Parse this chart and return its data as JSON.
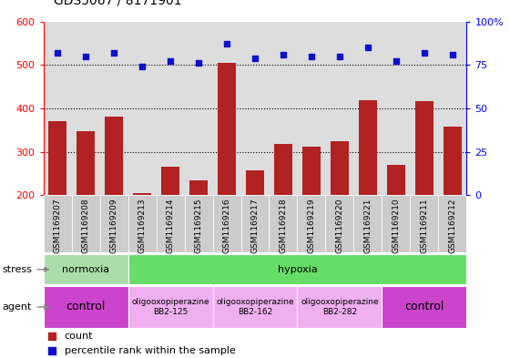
{
  "title": "GDS5067 / 8171901",
  "samples": [
    "GSM1169207",
    "GSM1169208",
    "GSM1169209",
    "GSM1169213",
    "GSM1169214",
    "GSM1169215",
    "GSM1169216",
    "GSM1169217",
    "GSM1169218",
    "GSM1169219",
    "GSM1169220",
    "GSM1169221",
    "GSM1169210",
    "GSM1169211",
    "GSM1169212"
  ],
  "counts": [
    370,
    348,
    381,
    205,
    265,
    233,
    505,
    257,
    318,
    312,
    325,
    418,
    270,
    416,
    357
  ],
  "percentiles": [
    82,
    80,
    82,
    74,
    77,
    76,
    87,
    79,
    81,
    80,
    80,
    85,
    77,
    82,
    81
  ],
  "ylim_left": [
    200,
    600
  ],
  "ylim_right": [
    0,
    100
  ],
  "yticks_left": [
    200,
    300,
    400,
    500,
    600
  ],
  "yticks_right": [
    0,
    25,
    50,
    75,
    100
  ],
  "bar_color": "#b22222",
  "dot_color": "#1010cc",
  "stress_groups": [
    {
      "label": "normoxia",
      "start": 0,
      "end": 3,
      "color": "#aaddaa"
    },
    {
      "label": "hypoxia",
      "start": 3,
      "end": 15,
      "color": "#66dd66"
    }
  ],
  "agent_groups": [
    {
      "label": "control",
      "start": 0,
      "end": 3,
      "color": "#cc44cc",
      "text_size": 9
    },
    {
      "label": "oligooxopiperazine\nBB2-125",
      "start": 3,
      "end": 6,
      "color": "#f0b0f0",
      "text_size": 6.5
    },
    {
      "label": "oligooxopiperazine\nBB2-162",
      "start": 6,
      "end": 9,
      "color": "#f0b0f0",
      "text_size": 6.5
    },
    {
      "label": "oligooxopiperazine\nBB2-282",
      "start": 9,
      "end": 12,
      "color": "#f0b0f0",
      "text_size": 6.5
    },
    {
      "label": "control",
      "start": 12,
      "end": 15,
      "color": "#cc44cc",
      "text_size": 9
    }
  ],
  "background_color": "#ffffff",
  "plot_bg_color": "#dddddd",
  "dotted_lines": [
    300,
    400,
    500
  ],
  "note": "percentile scaled: pct*4 + 200 maps 0->200, 100->600"
}
